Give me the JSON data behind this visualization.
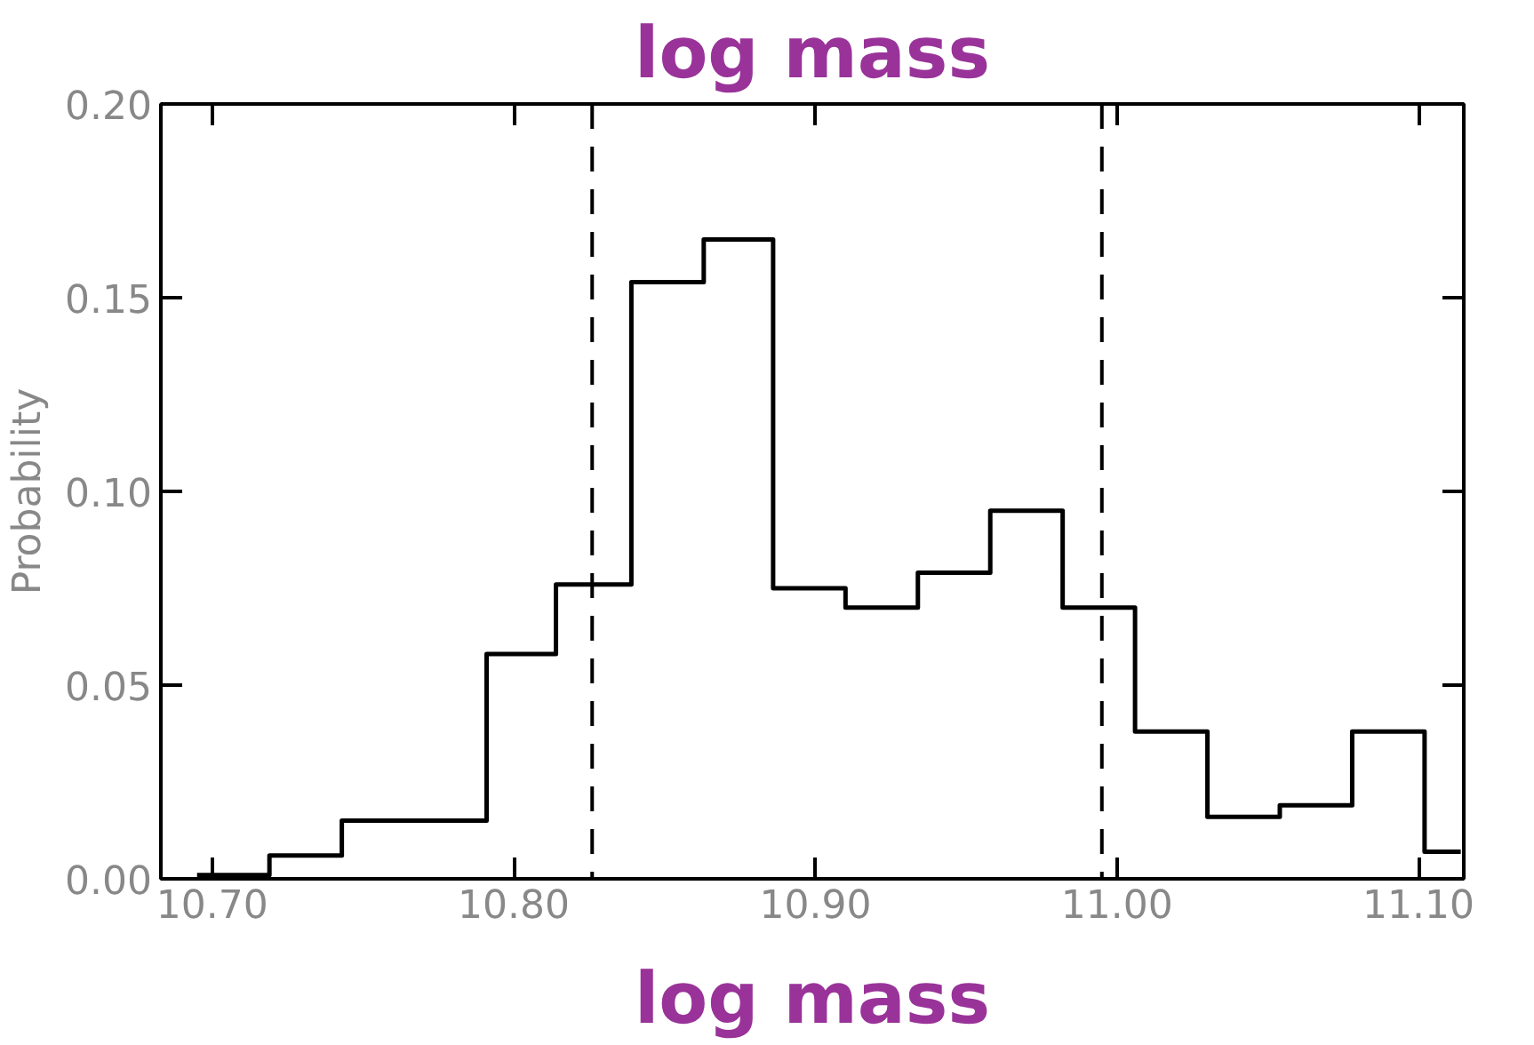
{
  "chart_data": {
    "type": "histogram",
    "title": "log mass",
    "xlabel": "log mass",
    "ylabel": "Probability",
    "bins": [
      10.695,
      10.719,
      10.743,
      10.767,
      10.791,
      10.814,
      10.839,
      10.863,
      10.886,
      10.91,
      10.934,
      10.958,
      10.982,
      11.006,
      11.03,
      11.054,
      11.078,
      11.102,
      11.114
    ],
    "values": [
      0.001,
      0.006,
      0.015,
      0.015,
      0.058,
      0.076,
      0.154,
      0.165,
      0.075,
      0.07,
      0.079,
      0.095,
      0.07,
      0.038,
      0.016,
      0.019,
      0.038,
      0.007
    ],
    "color": "#000000",
    "xlim": [
      10.683,
      11.115
    ],
    "xticks": [
      {
        "value": 10.7,
        "label": "10.70"
      },
      {
        "value": 10.8,
        "label": "10.80"
      },
      {
        "value": 10.9,
        "label": "10.90"
      },
      {
        "value": 11.0,
        "label": "11.00"
      },
      {
        "value": 11.1,
        "label": "11.10"
      }
    ],
    "ylim": [
      0,
      0.2
    ],
    "yticks": [
      {
        "value": 0,
        "label": "0.00"
      },
      {
        "value": 0.05,
        "label": "0.05"
      },
      {
        "value": 0.1,
        "label": "0.10"
      },
      {
        "value": 0.15,
        "label": "0.15"
      },
      {
        "value": 0.2,
        "label": "0.20"
      }
    ],
    "ref_lines": [
      {
        "axis": "x",
        "value": 10.826,
        "color": "#000000",
        "line_style": "dashed"
      },
      {
        "axis": "x",
        "value": 10.995,
        "color": "#000000",
        "line_style": "dashed"
      }
    ],
    "grid": false
  }
}
